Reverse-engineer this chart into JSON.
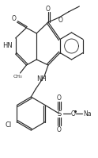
{
  "bg": "#ffffff",
  "lc": "#2a2a2a",
  "lw": 0.85,
  "figsize": [
    1.24,
    1.99
  ],
  "dpi": 100,
  "xlim": [
    0,
    124
  ],
  "ylim": [
    0,
    199
  ]
}
